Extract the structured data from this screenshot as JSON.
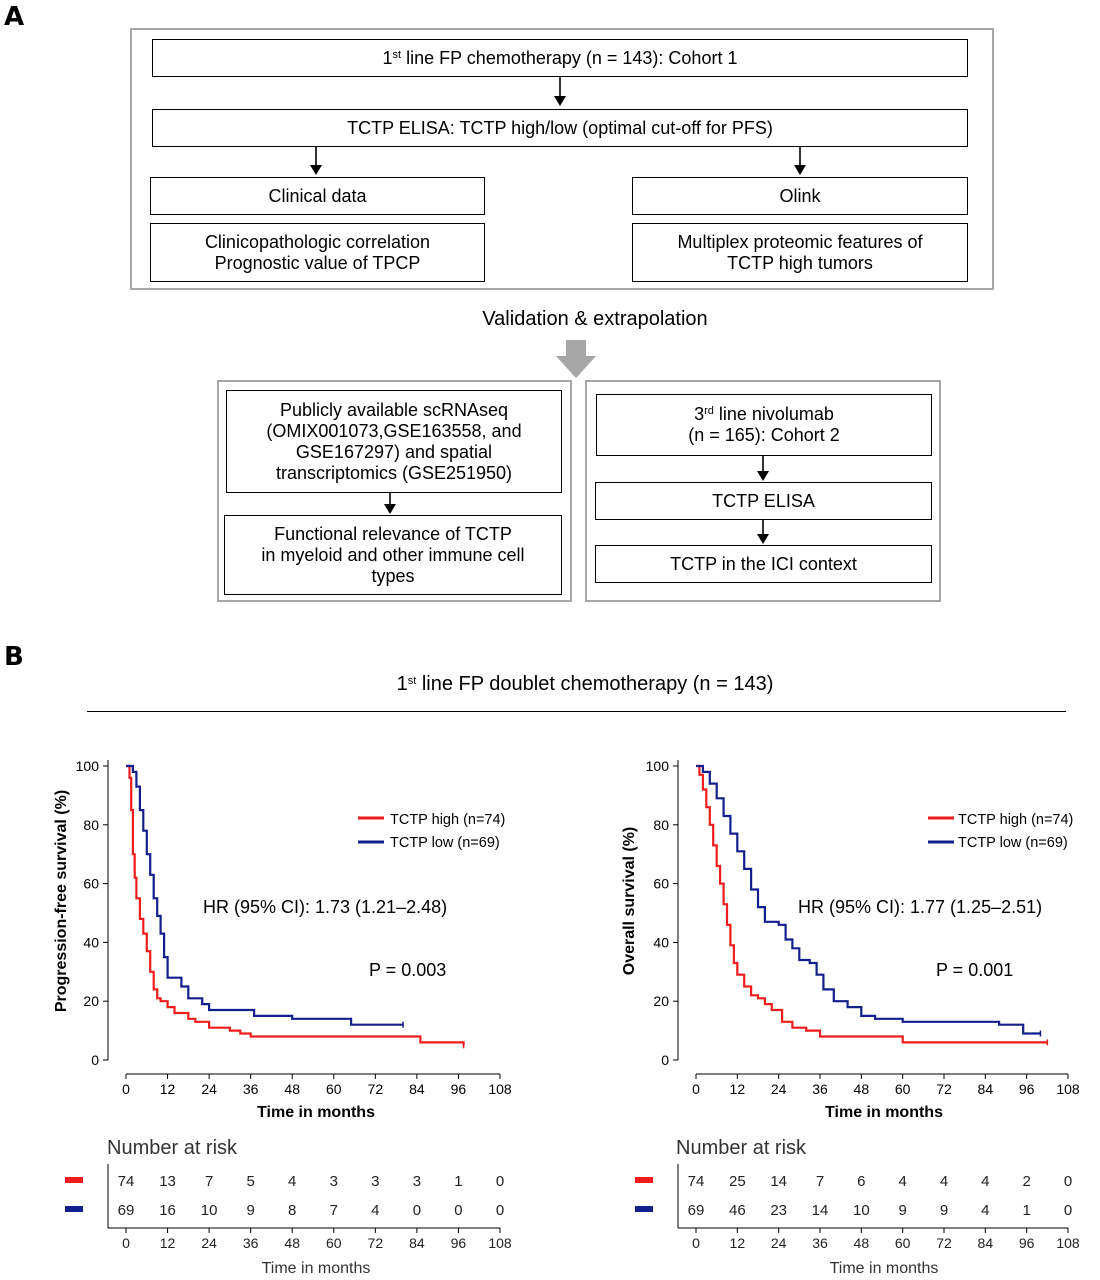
{
  "panel_a": {
    "label": "A",
    "cohort1": {
      "pre": "1",
      "sup": "st",
      "post": " line FP chemotherapy (n = 143): Cohort 1"
    },
    "elisa1": "TCTP ELISA: TCTP high/low (optimal cut-off for PFS)",
    "clinical_data": "Clinical data",
    "clinical_detail": "Clinicopathologic correlation\nPrognostic value of TPCP",
    "olink": "Olink",
    "olink_detail": "Multiplex proteomic features of\nTCTP high tumors",
    "validation": "Validation & extrapolation",
    "scrna": "Publicly available scRNAseq\n(OMIX001073,GSE163558, and\nGSE167297) and spatial\ntranscriptomics (GSE251950)",
    "functional": "Functional relevance of TCTP\nin myeloid and other immune cell\ntypes",
    "cohort2": {
      "pre": "3",
      "sup": "rd",
      "post": " line nivolumab\n(n = 165): Cohort 2"
    },
    "elisa2": "TCTP ELISA",
    "ici": "TCTP in the ICI context"
  },
  "panel_b": {
    "label": "B",
    "title": {
      "pre": "1",
      "sup": "st",
      "post": " line FP doublet chemotherapy (n = 143)"
    }
  },
  "colors": {
    "high": "#ee1c1c",
    "low": "#121f8c",
    "frame": "#a6a6a6"
  },
  "chart_data": [
    {
      "type": "line",
      "subtype": "kaplan-meier",
      "ylabel": "Progression-free survival (%)",
      "xlabel": "Time in months",
      "xlim": [
        0,
        108
      ],
      "ylim": [
        0,
        100
      ],
      "xticks": [
        0,
        12,
        24,
        36,
        48,
        60,
        72,
        84,
        96,
        108
      ],
      "yticks": [
        0,
        20,
        40,
        60,
        80,
        100
      ],
      "legend_position": "top-right",
      "annotation_hr": "HR (95% CI): 1.73 (1.21–2.48)",
      "annotation_p": "P = 0.003",
      "series": [
        {
          "name": "TCTP high (n=74)",
          "color": "#ee1c1c",
          "points": [
            [
              0,
              100
            ],
            [
              1,
              96
            ],
            [
              1.5,
              85
            ],
            [
              2,
              70
            ],
            [
              2.5,
              62
            ],
            [
              3,
              55
            ],
            [
              4,
              48
            ],
            [
              5,
              43
            ],
            [
              6,
              37
            ],
            [
              7,
              30
            ],
            [
              8,
              24
            ],
            [
              9,
              21
            ],
            [
              10,
              20
            ],
            [
              12,
              18
            ],
            [
              14,
              16
            ],
            [
              18,
              14
            ],
            [
              20,
              13
            ],
            [
              24,
              11
            ],
            [
              30,
              10
            ],
            [
              33,
              9
            ],
            [
              36,
              8
            ],
            [
              48,
              8
            ],
            [
              60,
              8
            ],
            [
              72,
              8
            ],
            [
              84,
              8
            ],
            [
              85,
              6
            ],
            [
              96,
              6
            ],
            [
              97.5,
              5
            ]
          ]
        },
        {
          "name": "TCTP low (n=69)",
          "color": "#121f8c",
          "points": [
            [
              0,
              100
            ],
            [
              1,
              100
            ],
            [
              2,
              98
            ],
            [
              3,
              93
            ],
            [
              4,
              85
            ],
            [
              5,
              78
            ],
            [
              6,
              70
            ],
            [
              7,
              63
            ],
            [
              8,
              55
            ],
            [
              9,
              49
            ],
            [
              10,
              43
            ],
            [
              11,
              35
            ],
            [
              12,
              28
            ],
            [
              15,
              28
            ],
            [
              16,
              25
            ],
            [
              18,
              21
            ],
            [
              22,
              19
            ],
            [
              24,
              17
            ],
            [
              36,
              17
            ],
            [
              37,
              15
            ],
            [
              48,
              14
            ],
            [
              60,
              14
            ],
            [
              65,
              12
            ],
            [
              72,
              12
            ],
            [
              80,
              12
            ]
          ]
        }
      ],
      "risk_table": {
        "title": "Number at risk",
        "x": [
          0,
          12,
          24,
          36,
          48,
          60,
          72,
          84,
          96,
          108
        ],
        "rows": [
          {
            "series": "TCTP high",
            "color": "#ee1c1c",
            "values": [
              74,
              13,
              7,
              5,
              4,
              3,
              3,
              3,
              1,
              0
            ]
          },
          {
            "series": "TCTP low",
            "color": "#121f8c",
            "values": [
              69,
              16,
              10,
              9,
              8,
              7,
              4,
              0,
              0,
              0
            ]
          }
        ],
        "xlabel": "Time in months"
      }
    },
    {
      "type": "line",
      "subtype": "kaplan-meier",
      "ylabel": "Overall survival (%)",
      "xlabel": "Time in months",
      "xlim": [
        0,
        108
      ],
      "ylim": [
        0,
        100
      ],
      "xticks": [
        0,
        12,
        24,
        36,
        48,
        60,
        72,
        84,
        96,
        108
      ],
      "yticks": [
        0,
        20,
        40,
        60,
        80,
        100
      ],
      "legend_position": "top-right",
      "annotation_hr": "HR (95% CI): 1.77 (1.25–2.51)",
      "annotation_p": "P = 0.001",
      "series": [
        {
          "name": "TCTP high (n=74)",
          "color": "#ee1c1c",
          "points": [
            [
              0,
              100
            ],
            [
              1,
              97
            ],
            [
              2,
              92
            ],
            [
              3,
              86
            ],
            [
              4,
              80
            ],
            [
              5,
              73
            ],
            [
              6,
              66
            ],
            [
              7,
              60
            ],
            [
              8,
              53
            ],
            [
              9,
              46
            ],
            [
              10,
              39
            ],
            [
              11,
              33
            ],
            [
              12,
              29
            ],
            [
              14,
              25
            ],
            [
              16,
              22
            ],
            [
              18,
              21
            ],
            [
              20,
              19
            ],
            [
              22,
              17
            ],
            [
              25,
              13
            ],
            [
              28,
              11
            ],
            [
              32,
              10
            ],
            [
              36,
              8
            ],
            [
              48,
              8
            ],
            [
              60,
              6
            ],
            [
              72,
              6
            ],
            [
              84,
              6
            ],
            [
              96,
              6
            ],
            [
              102,
              6
            ]
          ]
        },
        {
          "name": "TCTP low (n=69)",
          "color": "#121f8c",
          "points": [
            [
              0,
              100
            ],
            [
              2,
              98
            ],
            [
              4,
              94
            ],
            [
              6,
              89
            ],
            [
              8,
              83
            ],
            [
              10,
              77
            ],
            [
              12,
              71
            ],
            [
              14,
              65
            ],
            [
              16,
              58
            ],
            [
              18,
              52
            ],
            [
              20,
              47
            ],
            [
              24,
              46
            ],
            [
              26,
              41
            ],
            [
              28,
              38
            ],
            [
              30,
              34
            ],
            [
              33,
              33
            ],
            [
              35,
              29
            ],
            [
              37,
              24
            ],
            [
              40,
              20
            ],
            [
              44,
              18
            ],
            [
              48,
              15
            ],
            [
              52,
              14
            ],
            [
              60,
              13
            ],
            [
              72,
              13
            ],
            [
              88,
              12
            ],
            [
              95,
              9
            ],
            [
              100,
              9
            ]
          ]
        }
      ],
      "risk_table": {
        "title": "Number at risk",
        "x": [
          0,
          12,
          24,
          36,
          48,
          60,
          72,
          84,
          96,
          108
        ],
        "rows": [
          {
            "series": "TCTP high",
            "color": "#ee1c1c",
            "values": [
              74,
              25,
              14,
              7,
              6,
              4,
              4,
              4,
              2,
              0
            ]
          },
          {
            "series": "TCTP low",
            "color": "#121f8c",
            "values": [
              69,
              46,
              23,
              14,
              10,
              9,
              9,
              4,
              1,
              0
            ]
          }
        ],
        "xlabel": "Time in months"
      }
    }
  ]
}
